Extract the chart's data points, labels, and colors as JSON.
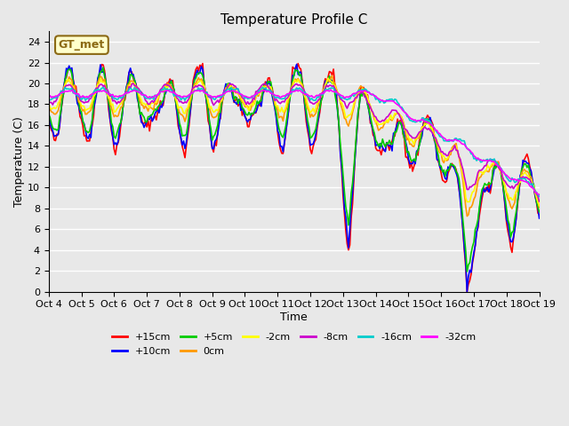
{
  "title": "Temperature Profile C",
  "xlabel": "Time",
  "ylabel": "Temperature (C)",
  "ylim": [
    0,
    25
  ],
  "yticks": [
    0,
    2,
    4,
    6,
    8,
    10,
    12,
    14,
    16,
    18,
    20,
    22,
    24
  ],
  "xtick_labels": [
    "Oct 4",
    "Oct 5",
    "Oct 6",
    "Oct 7",
    "Oct 8",
    "Oct 9",
    "Oct 10",
    "Oct 11",
    "Oct 12",
    "Oct 13",
    "Oct 14",
    "Oct 15",
    "Oct 16",
    "Oct 17",
    "Oct 18",
    "Oct 19"
  ],
  "legend_label": "GT_met",
  "series_labels": [
    "+15cm",
    "+10cm",
    "+5cm",
    "0cm",
    "-2cm",
    "-8cm",
    "-16cm",
    "-32cm"
  ],
  "series_colors": [
    "#ff0000",
    "#0000ff",
    "#00cc00",
    "#ff9900",
    "#ffff00",
    "#cc00cc",
    "#00cccc",
    "#ff00ff"
  ],
  "background_color": "#e8e8e8",
  "plot_bg_color": "#e8e8e8",
  "grid_color": "#ffffff"
}
